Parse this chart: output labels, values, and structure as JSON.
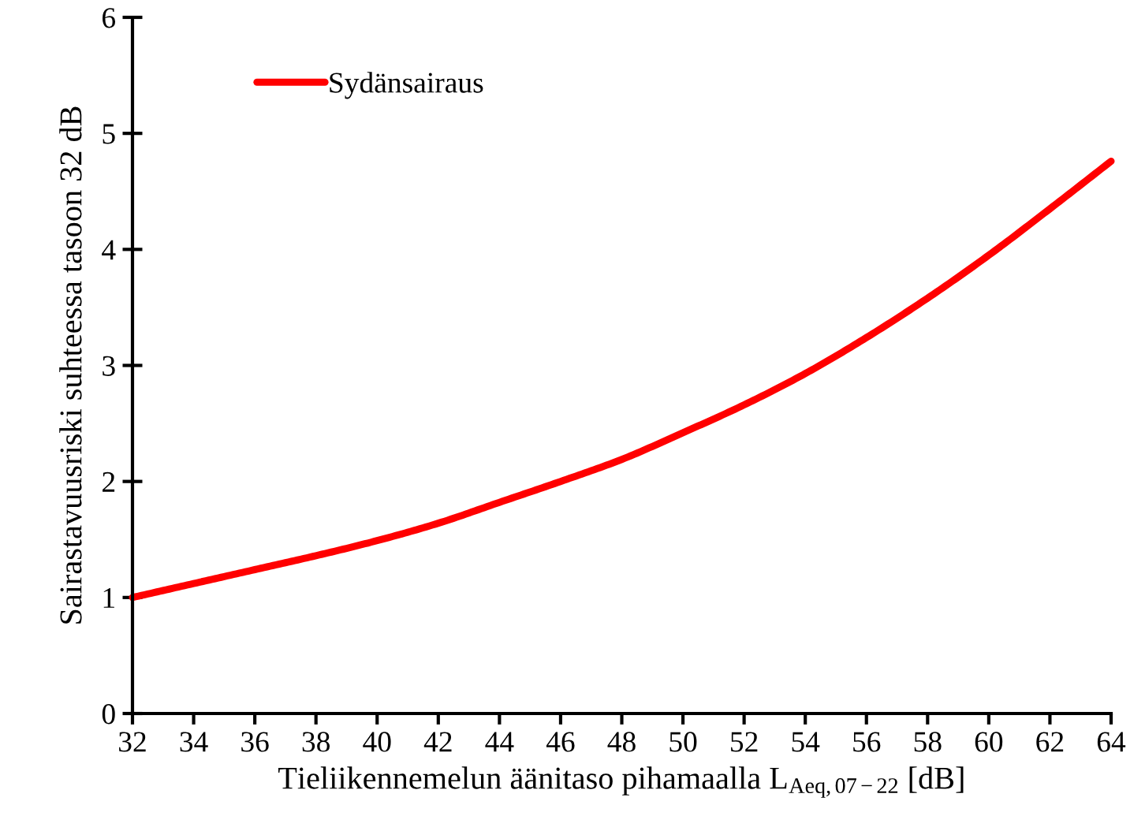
{
  "chart_data": {
    "type": "line",
    "xlabel": "Tieliikennemelun äänitaso pihamaalla L$_{Aeq,07−22}$ [dB]",
    "ylabel": "Sairastavuusriski suhteessa tasoon 32 dB",
    "x": [
      32,
      34,
      36,
      38,
      40,
      42,
      44,
      46,
      48,
      50,
      52,
      54,
      56,
      58,
      60,
      62,
      64
    ],
    "series": [
      {
        "name": "Sydänsairaus",
        "color": "#ff0000",
        "values": [
          1.0,
          1.12,
          1.24,
          1.36,
          1.49,
          1.64,
          1.82,
          2.0,
          2.19,
          2.42,
          2.66,
          2.93,
          3.24,
          3.58,
          3.95,
          4.35,
          4.76
        ]
      }
    ],
    "xlim": [
      32,
      64
    ],
    "xticks": [
      32,
      34,
      36,
      38,
      40,
      42,
      44,
      46,
      48,
      50,
      52,
      54,
      56,
      58,
      60,
      62,
      64
    ],
    "ylim": [
      0,
      6
    ],
    "yticks": [
      0,
      1,
      2,
      3,
      4,
      5,
      6
    ],
    "legend": "top left",
    "grid": false,
    "line_style": "solid",
    "marker": "none"
  }
}
